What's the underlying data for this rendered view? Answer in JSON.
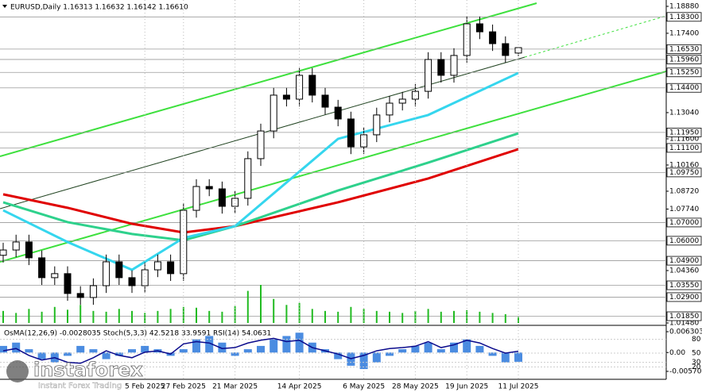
{
  "header": "EURUSD,Daily  1.16313 1.16632 1.16142 1.16610",
  "logo": {
    "name": "instaforex",
    "tagline": "Instant Forex Trading"
  },
  "chart_data": {
    "type": "candlestick",
    "categories": [
      null,
      null,
      null,
      null,
      null,
      null,
      null,
      null,
      null,
      null,
      null,
      "5 Feb 2025",
      null,
      null,
      "27 Feb 2025",
      null,
      null,
      null,
      "21 Mar 2025",
      null,
      null,
      null,
      null,
      "14 Apr 2025",
      null,
      null,
      null,
      null,
      "6 May 2025",
      null,
      null,
      null,
      "28 May 2025",
      null,
      null,
      null,
      "19 Jun 2025",
      null,
      null,
      null,
      "11 Jul 2025"
    ],
    "open": [
      1.052,
      1.0549,
      1.0593,
      1.0506,
      1.0397,
      1.0419,
      1.031,
      1.0288,
      1.0353,
      1.0484,
      1.0397,
      1.0353,
      1.044,
      1.0484,
      1.0419,
      1.0767,
      1.0898,
      1.0885,
      1.0789,
      1.0833,
      1.1051,
      1.1203,
      1.14,
      1.1378,
      1.1509,
      1.14,
      1.1334,
      1.1269,
      1.1116,
      1.1182,
      1.1291,
      1.1356,
      1.1378,
      1.1421,
      1.1596,
      1.1509,
      1.1618,
      1.1792,
      1.1748,
      1.1683,
      1.16313
    ],
    "high": [
      1.0589,
      1.0633,
      1.0633,
      1.0546,
      1.0459,
      1.0459,
      1.035,
      1.0393,
      1.0524,
      1.0524,
      1.0437,
      1.048,
      1.0524,
      1.0524,
      1.0807,
      1.0938,
      1.0938,
      1.0925,
      1.0873,
      1.1091,
      1.1243,
      1.144,
      1.144,
      1.1549,
      1.1549,
      1.144,
      1.1374,
      1.1309,
      1.1222,
      1.1331,
      1.1396,
      1.1418,
      1.1461,
      1.1636,
      1.1636,
      1.1658,
      1.1832,
      1.1832,
      1.1788,
      1.1723,
      1.16632
    ],
    "low": [
      1.048,
      1.0509,
      1.0466,
      1.0357,
      1.0357,
      1.027,
      1.0248,
      1.0248,
      1.0313,
      1.0357,
      1.0313,
      1.0313,
      1.04,
      1.0379,
      1.0379,
      1.0727,
      1.0845,
      1.0749,
      1.0749,
      1.0793,
      1.1011,
      1.1163,
      1.1338,
      1.1338,
      1.136,
      1.1294,
      1.1229,
      1.1076,
      1.1076,
      1.1142,
      1.1251,
      1.1316,
      1.1338,
      1.1381,
      1.1469,
      1.1469,
      1.1578,
      1.1708,
      1.1643,
      1.1578,
      1.16142
    ],
    "close": [
      1.0549,
      1.0593,
      1.0506,
      1.0397,
      1.0419,
      1.031,
      1.0288,
      1.0353,
      1.0484,
      1.0397,
      1.0353,
      1.044,
      1.0484,
      1.0419,
      1.0767,
      1.0898,
      1.0885,
      1.0789,
      1.0833,
      1.1051,
      1.1203,
      1.14,
      1.1378,
      1.1509,
      1.14,
      1.1334,
      1.1269,
      1.1116,
      1.1182,
      1.1291,
      1.1356,
      1.1378,
      1.1421,
      1.1596,
      1.1509,
      1.1618,
      1.1792,
      1.1748,
      1.1683,
      1.1618,
      1.1661
    ],
    "ylim": [
      1.0148,
      1.1888
    ],
    "yticks": [
      {
        "value": 1.1888,
        "label": "1.18880"
      },
      {
        "value": 1.174,
        "label": "1.17400"
      },
      {
        "value": 1.1304,
        "label": "1.13040"
      },
      {
        "value": 1.116,
        "label": "1.11600"
      },
      {
        "value": 1.1016,
        "label": "1.10160"
      },
      {
        "value": 1.0872,
        "label": "1.08720"
      },
      {
        "value": 1.0774,
        "label": "1.07740"
      },
      {
        "value": 1.0436,
        "label": "1.04360"
      },
      {
        "value": 1.0148,
        "label": "1.01480"
      }
    ],
    "levels": [
      {
        "value": 1.183,
        "label": "1.18300"
      },
      {
        "value": 1.1653,
        "label": "1.16530"
      },
      {
        "value": 1.1596,
        "label": "1.15960"
      },
      {
        "value": 1.1525,
        "label": "1.15250"
      },
      {
        "value": 1.144,
        "label": "1.14400"
      },
      {
        "value": 1.1195,
        "label": "1.11950"
      },
      {
        "value": 1.111,
        "label": "1.11100"
      },
      {
        "value": 1.0975,
        "label": "1.09750"
      },
      {
        "value": 1.07,
        "label": "1.07000"
      },
      {
        "value": 1.06,
        "label": "1.06000"
      },
      {
        "value": 1.049,
        "label": "1.04900"
      },
      {
        "value": 1.0355,
        "label": "1.03550"
      },
      {
        "value": 1.029,
        "label": "1.02900"
      },
      {
        "value": 1.0185,
        "label": "1.01850"
      }
    ],
    "moving_averages": [
      {
        "color": "#e00000",
        "x": [
          0,
          5,
          10,
          14,
          18,
          26,
          33,
          40
        ],
        "values": [
          1.0855,
          1.0781,
          1.0693,
          1.0645,
          1.068,
          1.0811,
          1.0942,
          1.1103
        ]
      },
      {
        "color": "#2ed18c",
        "x": [
          0,
          5,
          10,
          14,
          18,
          26,
          33,
          40
        ],
        "values": [
          1.0811,
          1.0702,
          1.0637,
          1.0602,
          1.068,
          1.0876,
          1.1029,
          1.119
        ]
      },
      {
        "color": "#35d6ee",
        "x": [
          0,
          5,
          10,
          14,
          18,
          26,
          33,
          40
        ],
        "values": [
          1.0767,
          1.0593,
          1.044,
          1.0615,
          1.068,
          1.116,
          1.1291,
          1.1522
        ]
      }
    ],
    "volume": {
      "color": "#22bb22",
      "values": [
        30,
        25,
        35,
        28,
        40,
        33,
        45,
        30,
        28,
        35,
        30,
        25,
        30,
        35,
        40,
        38,
        30,
        28,
        42,
        80,
        95,
        60,
        45,
        50,
        35,
        30,
        28,
        40,
        35,
        30,
        28,
        25,
        30,
        35,
        28,
        30,
        32,
        28,
        25,
        22,
        15
      ]
    },
    "indicators": {
      "title": "OsMA(12,26,9) -0.0028035  Stoch(5,3,3) 42.5218 33.9591  RSI(14) 54.0631",
      "osma": {
        "color": "#1e6fd9",
        "ylim": [
          -0.0057028,
          0.0063032
        ],
        "yticks": [
          0.0063032,
          {
            "value": 0,
            "label": "0.00"
          },
          -0.0057028
        ],
        "values": [
          0.002,
          0.003,
          0.001,
          -0.002,
          -0.003,
          -0.001,
          0.002,
          0.001,
          -0.002,
          -0.001,
          0.001,
          0.002,
          0.001,
          -0.001,
          0.001,
          0.004,
          0.005,
          0.003,
          -0.001,
          0.001,
          0.002,
          0.004,
          0.005,
          0.006,
          0.003,
          0.001,
          -0.002,
          -0.004,
          -0.005,
          -0.003,
          -0.001,
          0.001,
          0.002,
          0.003,
          0.001,
          0.003,
          0.004,
          0.002,
          -0.001,
          -0.003,
          -0.0028
        ]
      },
      "rsi": {
        "color": "#0a0a8c",
        "ylim": [
          0,
          100
        ],
        "yticks": [
          80,
          50,
          30,
          20
        ],
        "values": [
          55,
          60,
          45,
          35,
          40,
          30,
          28,
          40,
          55,
          45,
          40,
          52,
          55,
          48,
          70,
          75,
          72,
          60,
          62,
          72,
          78,
          82,
          75,
          78,
          62,
          55,
          48,
          38,
          45,
          55,
          60,
          62,
          65,
          75,
          62,
          68,
          78,
          72,
          60,
          50,
          54.0631
        ]
      }
    }
  }
}
